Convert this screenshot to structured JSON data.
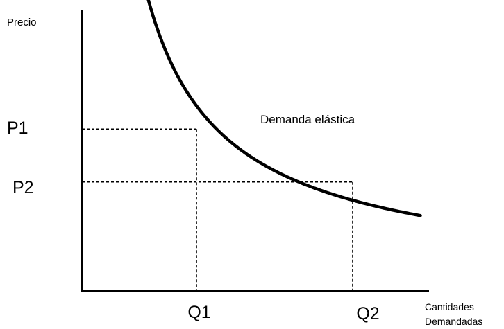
{
  "chart_data": {
    "type": "line",
    "title": "",
    "ylabel": "Precio",
    "xlabel": [
      "Cantidades",
      "Demandadas"
    ],
    "price_levels": [
      {
        "label": "P1",
        "value": 2.75
      },
      {
        "label": "P2",
        "value": 1.85
      }
    ],
    "quantity_levels": [
      {
        "label": "Q1",
        "value": 2.2
      },
      {
        "label": "Q2",
        "value": 5.2
      }
    ],
    "curve_label": "Demanda elástica",
    "colors": {
      "curve": "#000000",
      "axis": "#000000",
      "guides": "#000000"
    }
  }
}
